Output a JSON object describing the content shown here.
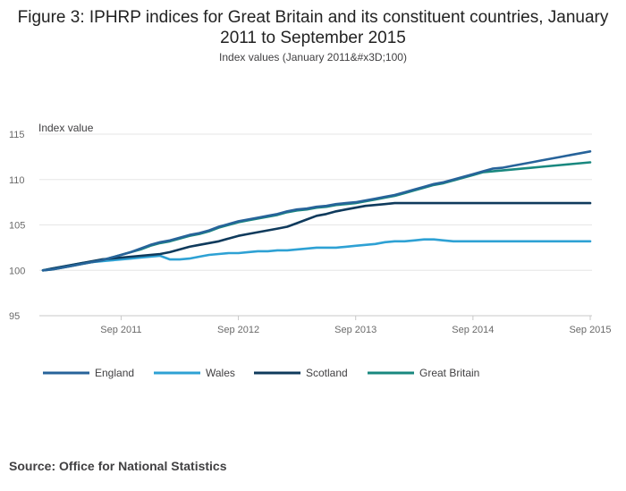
{
  "page": {
    "title": "Figure 3: IPHRP indices for Great Britain and its constituent countries, January 2011 to September 2015",
    "subtitle": "Index values (January 2011&#x3D;100)",
    "source": "Source: Office for National Statistics"
  },
  "chart_data": {
    "type": "line",
    "title": "Figure 3: IPHRP indices for Great Britain and its constituent countries, January 2011 to September 2015",
    "subtitle": "Index values (January 2011&#x3D;100)",
    "xlabel": "",
    "ylabel": "Index value",
    "ylim": [
      95,
      115
    ],
    "yticks": [
      95,
      100,
      105,
      110,
      115
    ],
    "grid": true,
    "legend_position": "bottom",
    "x_start": "Jan 2011",
    "x_end": "Sep 2015",
    "xticks": [
      {
        "index": 8,
        "label": "Sep 2011"
      },
      {
        "index": 20,
        "label": "Sep 2012"
      },
      {
        "index": 32,
        "label": "Sep 2013"
      },
      {
        "index": 44,
        "label": "Sep 2014"
      },
      {
        "index": 56,
        "label": "Sep 2015"
      }
    ],
    "series": [
      {
        "name": "England",
        "color": "#27639a",
        "values": [
          100,
          100.1,
          100.3,
          100.5,
          100.7,
          100.9,
          101.1,
          101.4,
          101.7,
          102.0,
          102.4,
          102.8,
          103.1,
          103.3,
          103.6,
          103.9,
          104.1,
          104.4,
          104.8,
          105.1,
          105.4,
          105.6,
          105.8,
          106.0,
          106.2,
          106.5,
          106.7,
          106.8,
          107.0,
          107.1,
          107.3,
          107.4,
          107.5,
          107.7,
          107.9,
          108.1,
          108.3,
          108.6,
          108.9,
          109.2,
          109.5,
          109.7,
          110.0,
          110.3,
          110.6,
          110.9,
          111.2,
          111.3,
          111.5,
          111.7,
          111.9,
          112.1,
          112.3,
          112.5,
          112.7,
          112.9,
          113.1
        ]
      },
      {
        "name": "Wales",
        "color": "#2ea1d4",
        "values": [
          100,
          100.2,
          100.4,
          100.6,
          100.8,
          100.9,
          101.0,
          101.1,
          101.2,
          101.3,
          101.4,
          101.5,
          101.6,
          101.2,
          101.2,
          101.3,
          101.5,
          101.7,
          101.8,
          101.9,
          101.9,
          102.0,
          102.1,
          102.1,
          102.2,
          102.2,
          102.3,
          102.4,
          102.5,
          102.5,
          102.5,
          102.6,
          102.7,
          102.8,
          102.9,
          103.1,
          103.2,
          103.2,
          103.3,
          103.4,
          103.4,
          103.3,
          103.2,
          103.2,
          103.2,
          103.2,
          103.2,
          103.2,
          103.2,
          103.2,
          103.2,
          103.2,
          103.2,
          103.2,
          103.2,
          103.2,
          103.2
        ]
      },
      {
        "name": "Scotland",
        "color": "#0f3a5c",
        "values": [
          100,
          100.2,
          100.4,
          100.6,
          100.8,
          101.0,
          101.2,
          101.3,
          101.4,
          101.5,
          101.6,
          101.7,
          101.8,
          102.0,
          102.3,
          102.6,
          102.8,
          103.0,
          103.2,
          103.5,
          103.8,
          104.0,
          104.2,
          104.4,
          104.6,
          104.8,
          105.2,
          105.6,
          106.0,
          106.2,
          106.5,
          106.7,
          106.9,
          107.1,
          107.2,
          107.3,
          107.4,
          107.4,
          107.4,
          107.4,
          107.4,
          107.4,
          107.4,
          107.4,
          107.4,
          107.4,
          107.4,
          107.4,
          107.4,
          107.4,
          107.4,
          107.4,
          107.4,
          107.4,
          107.4,
          107.4,
          107.4
        ]
      },
      {
        "name": "Great Britain",
        "color": "#19887f",
        "values": [
          100,
          100.1,
          100.3,
          100.5,
          100.7,
          100.9,
          101.1,
          101.4,
          101.7,
          102.0,
          102.3,
          102.7,
          103.0,
          103.2,
          103.5,
          103.8,
          104.0,
          104.3,
          104.7,
          105.0,
          105.3,
          105.5,
          105.7,
          105.9,
          106.1,
          106.4,
          106.6,
          106.7,
          106.9,
          107.0,
          107.2,
          107.3,
          107.4,
          107.6,
          107.8,
          108.0,
          108.2,
          108.5,
          108.8,
          109.1,
          109.4,
          109.6,
          109.9,
          110.2,
          110.5,
          110.8,
          110.9,
          111.0,
          111.1,
          111.2,
          111.3,
          111.4,
          111.5,
          111.6,
          111.7,
          111.8,
          111.9
        ]
      }
    ]
  }
}
